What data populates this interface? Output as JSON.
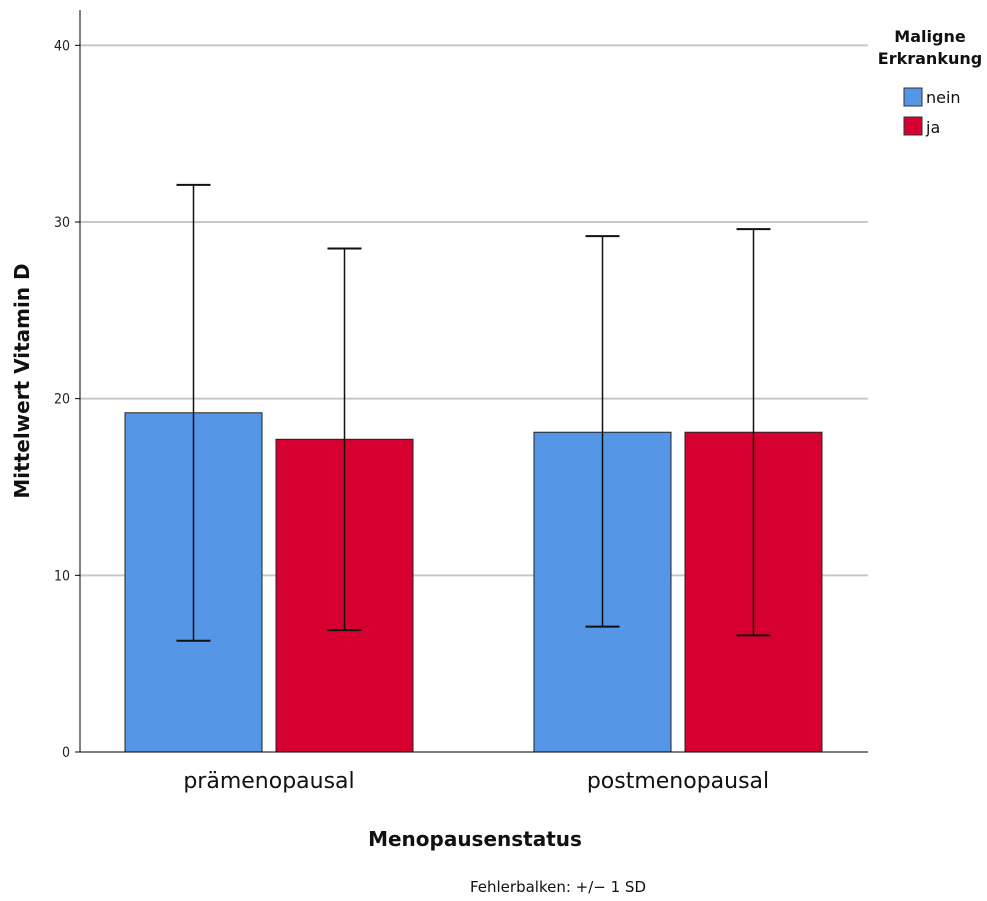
{
  "chart_data": {
    "type": "bar",
    "categories": [
      "prämenopausal",
      "postmenopausal"
    ],
    "series": [
      {
        "name": "nein",
        "color": "#5596e6",
        "values": [
          19.2,
          18.1
        ],
        "sd_low": [
          6.3,
          7.1
        ],
        "sd_high": [
          32.1,
          29.2
        ]
      },
      {
        "name": "ja",
        "color": "#d60030",
        "values": [
          17.7,
          18.1
        ],
        "sd_low": [
          6.9,
          6.6
        ],
        "sd_high": [
          28.5,
          29.6
        ]
      }
    ],
    "xlabel": "Menopausenstatus",
    "ylabel": "Mittelwert Vitamin D",
    "ylim": [
      0,
      42
    ],
    "yticks": [
      0,
      10,
      20,
      30,
      40
    ],
    "grid": true,
    "legend": {
      "title_line1": "Maligne",
      "title_line2": "Erkrankung",
      "placement": "top-right"
    },
    "note": "Fehlerbalken: +/− 1 SD"
  }
}
